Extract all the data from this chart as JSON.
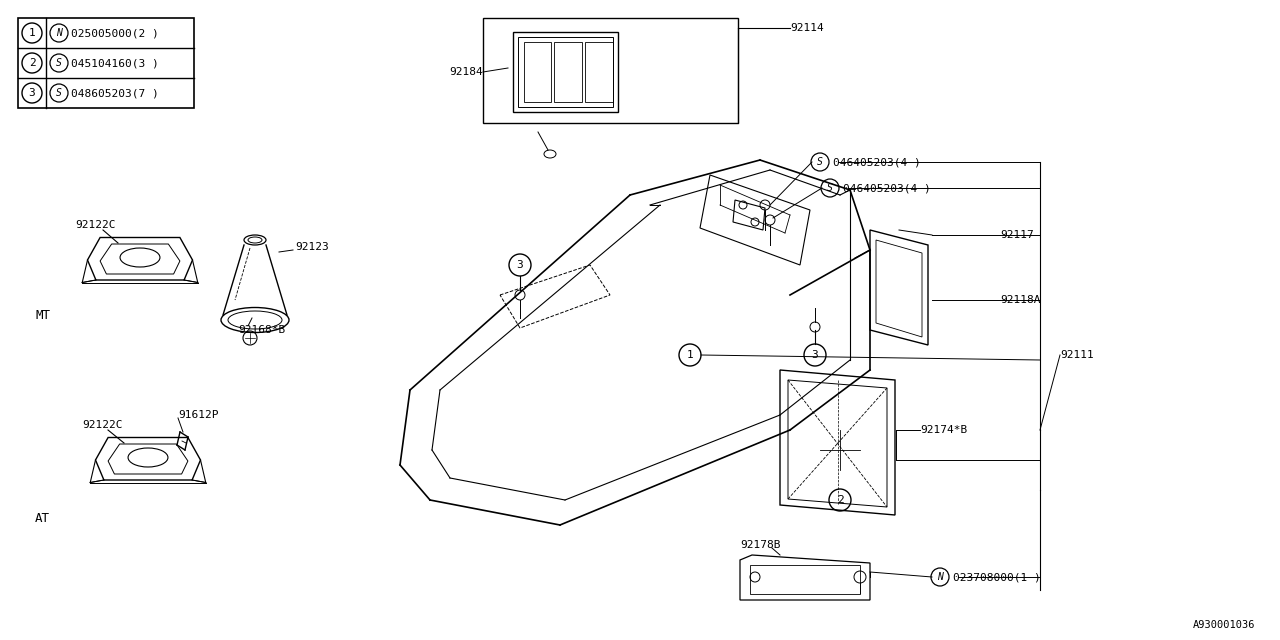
{
  "bg_color": "#ffffff",
  "line_color": "#000000",
  "text_color": "#000000",
  "fig_width": 12.8,
  "fig_height": 6.4,
  "parts_table": [
    [
      "1",
      "N",
      "025005000(2 )"
    ],
    [
      "2",
      "S",
      "045104160(3 )"
    ],
    [
      "3",
      "S",
      "048605203(7 )"
    ]
  ]
}
